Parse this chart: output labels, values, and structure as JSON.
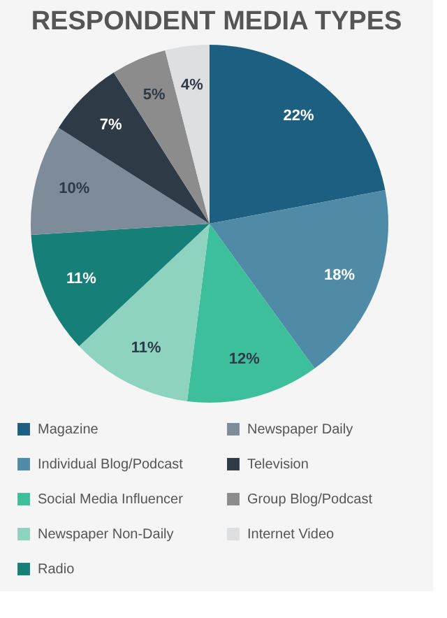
{
  "chart_data": {
    "type": "pie",
    "title": "RESPONDENT MEDIA TYPES",
    "categories": [
      "Magazine",
      "Individual Blog/Podcast",
      "Social Media Influencer",
      "Newspaper Non-Daily",
      "Radio",
      "Newspaper Daily",
      "Television",
      "Group Blog/Podcast",
      "Internet Video"
    ],
    "values": [
      22,
      18,
      12,
      11,
      11,
      10,
      7,
      5,
      4
    ],
    "value_labels": [
      "22%",
      "18%",
      "12%",
      "11%",
      "11%",
      "10%",
      "7%",
      "5%",
      "4%"
    ],
    "colors": [
      "#1d5f80",
      "#4f8aa6",
      "#3dbf9c",
      "#8ed3bf",
      "#168078",
      "#7e8b99",
      "#2e3a46",
      "#8c8c8c",
      "#dedfe0"
    ],
    "legend": "bottom"
  }
}
